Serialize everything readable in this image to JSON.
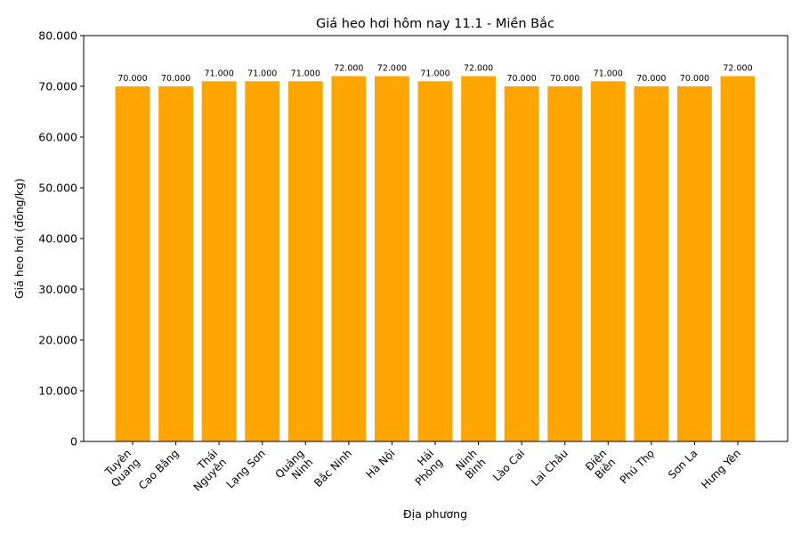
{
  "chart_data": {
    "type": "bar",
    "title": "Giá heo hơi hôm nay 11.1 - Miền Bắc",
    "xlabel": "Địa phương",
    "ylabel": "Giá heo hơi (đồng/kg)",
    "ylim": [
      0,
      80000
    ],
    "yticks": [
      0,
      10000,
      20000,
      30000,
      40000,
      50000,
      60000,
      70000,
      80000
    ],
    "ytick_labels": [
      "0",
      "10.000",
      "20.000",
      "30.000",
      "40.000",
      "50.000",
      "60.000",
      "70.000",
      "80.000"
    ],
    "categories": [
      "Tuyên\nQuang",
      "Cao Bằng",
      "Thái\nNguyên",
      "Lạng Sơn",
      "Quảng\nNinh",
      "Bắc Ninh",
      "Hà Nội",
      "Hải\nPhòng",
      "Ninh\nBình",
      "Lào Cai",
      "Lai Châu",
      "Điện\nBiên",
      "Phú Thọ",
      "Sơn La",
      "Hưng Yên"
    ],
    "values": [
      70000,
      70000,
      71000,
      71000,
      71000,
      72000,
      72000,
      71000,
      72000,
      70000,
      70000,
      71000,
      70000,
      70000,
      72000
    ],
    "data_labels": [
      "70.000",
      "70.000",
      "71.000",
      "71.000",
      "71.000",
      "72.000",
      "72.000",
      "71.000",
      "72.000",
      "70.000",
      "70.000",
      "71.000",
      "70.000",
      "70.000",
      "72.000"
    ],
    "bar_color": "#FFA500",
    "grid": false,
    "legend": "none"
  }
}
